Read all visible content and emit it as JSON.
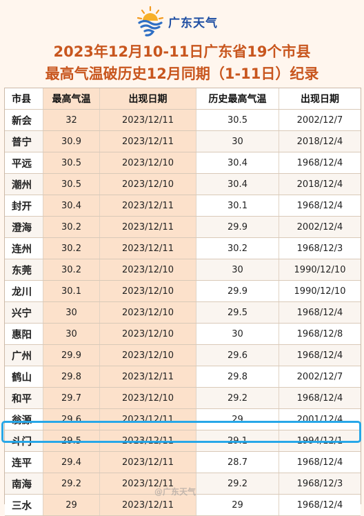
{
  "brand": {
    "name": "广东天气",
    "icon": "sun-wave-logo-icon",
    "color": "#1f4fa3"
  },
  "title_line1": "2023年12月10-11日广东省19个市县",
  "title_line2": "最高气温破历史12月同期（1-11日）纪录",
  "table": {
    "headers": [
      "市县",
      "最高气温",
      "出现日期",
      "历史最高气温",
      "出现日期"
    ],
    "rows": [
      [
        "新会",
        "32",
        "2023/12/11",
        "30.5",
        "2002/12/7"
      ],
      [
        "普宁",
        "30.9",
        "2023/12/11",
        "30",
        "2018/12/4"
      ],
      [
        "平远",
        "30.5",
        "2023/12/10",
        "30.4",
        "1968/12/4"
      ],
      [
        "潮州",
        "30.5",
        "2023/12/10",
        "30.4",
        "2018/12/4"
      ],
      [
        "封开",
        "30.4",
        "2023/12/11",
        "30.1",
        "1968/12/4"
      ],
      [
        "澄海",
        "30.2",
        "2023/12/11",
        "29.9",
        "2002/12/4"
      ],
      [
        "连州",
        "30.2",
        "2023/12/11",
        "30.2",
        "1968/12/3"
      ],
      [
        "东莞",
        "30.2",
        "2023/12/10",
        "30",
        "1990/12/10"
      ],
      [
        "龙川",
        "30.1",
        "2023/12/10",
        "29.9",
        "1990/12/10"
      ],
      [
        "兴宁",
        "30",
        "2023/12/10",
        "29.5",
        "1968/12/4"
      ],
      [
        "惠阳",
        "30",
        "2023/12/10",
        "30",
        "1968/12/8"
      ],
      [
        "广州",
        "29.9",
        "2023/12/10",
        "29.6",
        "1968/12/4"
      ],
      [
        "鹤山",
        "29.8",
        "2023/12/11",
        "29.8",
        "2002/12/7"
      ],
      [
        "和平",
        "29.7",
        "2023/12/10",
        "29.2",
        "1968/12/4"
      ],
      [
        "翁源",
        "29.6",
        "2023/12/11",
        "29",
        "2001/12/4"
      ],
      [
        "斗门",
        "29.5",
        "2023/12/11",
        "29.1",
        "1994/12/1"
      ],
      [
        "连平",
        "29.4",
        "2023/12/11",
        "28.7",
        "1968/12/4"
      ],
      [
        "南海",
        "29.2",
        "2023/12/11",
        "29.2",
        "1968/12/3"
      ],
      [
        "三水",
        "29",
        "2023/12/11",
        "29",
        "1968/12/4"
      ]
    ],
    "highlighted_row": "斗门",
    "highlight_color": "#27a7e8"
  },
  "watermark": "@广东天气"
}
